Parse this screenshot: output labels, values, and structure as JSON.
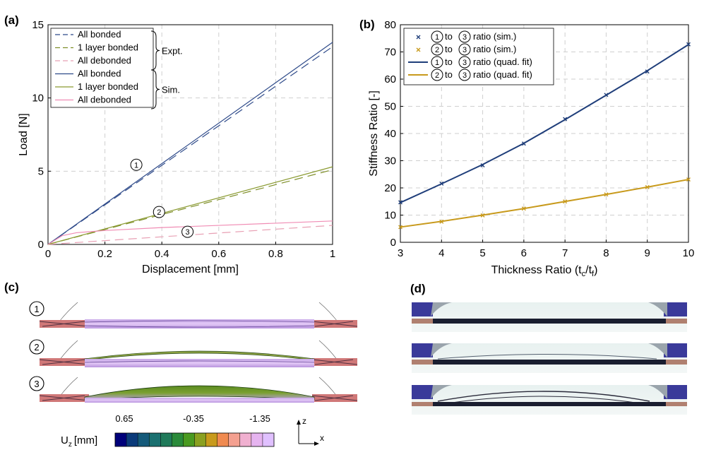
{
  "panels": {
    "a": "(a)",
    "b": "(b)",
    "c": "(c)",
    "d": "(d)"
  },
  "chart_data": [
    {
      "id": "a",
      "type": "line",
      "xlabel": "Displacement [mm]",
      "ylabel": "Load [N]",
      "xlim": [
        0,
        1
      ],
      "ylim": [
        0,
        15
      ],
      "xticks": [
        0,
        0.2,
        0.4,
        0.6,
        0.8,
        1
      ],
      "xtick_labels": [
        "0",
        "0.2",
        "0.4",
        "0.6",
        "0.8",
        "1"
      ],
      "yticks": [
        0,
        5,
        10,
        15
      ],
      "ytick_labels": [
        "0",
        "5",
        "10",
        "15"
      ],
      "grid": true,
      "series": [
        {
          "name": "All bonded",
          "group": "Expt.",
          "style": "dashed",
          "color": "#2f4b8a",
          "x": [
            0,
            1
          ],
          "y": [
            0,
            13.5
          ]
        },
        {
          "name": "1 layer bonded",
          "group": "Expt.",
          "style": "dashed",
          "color": "#7f8f2a",
          "x": [
            0,
            1
          ],
          "y": [
            0,
            5.1
          ]
        },
        {
          "name": "All debonded",
          "group": "Expt.",
          "style": "dashed",
          "color": "#e8a0b4",
          "x": [
            0,
            1
          ],
          "y": [
            0,
            1.3
          ]
        },
        {
          "name": "All bonded",
          "group": "Sim.",
          "style": "solid",
          "color": "#2f4b8a",
          "x": [
            0,
            1
          ],
          "y": [
            0,
            13.8
          ]
        },
        {
          "name": "1 layer bonded",
          "group": "Sim.",
          "style": "solid",
          "color": "#8a9a30",
          "x": [
            0,
            1
          ],
          "y": [
            0,
            5.3
          ]
        },
        {
          "name": "All debonded",
          "group": "Sim.",
          "style": "solid",
          "color": "#f08cb4",
          "x": [
            0,
            0.05,
            0.1,
            0.2,
            0.4,
            0.6,
            0.8,
            1
          ],
          "y": [
            0,
            0.6,
            0.8,
            0.95,
            1.15,
            1.3,
            1.45,
            1.6
          ]
        }
      ],
      "legend_groups": [
        "Expt.",
        "Sim."
      ],
      "legend_position": "top-left",
      "annotations": [
        {
          "label": "1",
          "x": 0.36,
          "y": 5.1
        },
        {
          "label": "2",
          "x": 0.42,
          "y": 2.6
        },
        {
          "label": "3",
          "x": 0.53,
          "y": 1.25
        }
      ]
    },
    {
      "id": "b",
      "type": "line",
      "xlabel_main": "Thickness Ratio (t",
      "xlabel_sub1": "c",
      "xlabel_mid": "/t",
      "xlabel_sub2": "f",
      "xlabel_end": ")",
      "ylabel": "Stiffness Ratio [-]",
      "xlim": [
        3,
        10
      ],
      "ylim": [
        0,
        80
      ],
      "xticks": [
        3,
        4,
        5,
        6,
        7,
        8,
        9,
        10
      ],
      "xtick_labels": [
        "3",
        "4",
        "5",
        "6",
        "7",
        "8",
        "9",
        "10"
      ],
      "yticks": [
        0,
        10,
        20,
        30,
        40,
        50,
        60,
        70,
        80
      ],
      "ytick_labels": [
        "0",
        "10",
        "20",
        "30",
        "40",
        "50",
        "60",
        "70",
        "80"
      ],
      "grid": true,
      "legend_position": "top-left",
      "series": [
        {
          "name": "to",
          "c1": "1",
          "c2": "3",
          "suffix": "ratio (sim.)",
          "kind": "marker",
          "color": "#1f3e7a",
          "x": [
            3,
            4,
            5,
            6,
            7,
            8,
            9,
            10
          ],
          "y": [
            14.7,
            21.6,
            28.3,
            36.3,
            45.3,
            54.2,
            62.8,
            72.8
          ]
        },
        {
          "name": "to",
          "c1": "2",
          "c2": "3",
          "suffix": "ratio (sim.)",
          "kind": "marker",
          "color": "#c89a1c",
          "x": [
            3,
            4,
            5,
            6,
            7,
            8,
            9,
            10
          ],
          "y": [
            5.6,
            7.6,
            9.9,
            12.4,
            15.0,
            17.6,
            20.3,
            23.1
          ]
        },
        {
          "name": "to",
          "c1": "1",
          "c2": "3",
          "suffix": "ratio (quad. fit)",
          "kind": "line",
          "color": "#1f3e7a",
          "x": [
            3,
            4,
            5,
            6,
            7,
            8,
            9,
            10
          ],
          "y": [
            14.6,
            21.5,
            28.6,
            36.4,
            45.1,
            54.1,
            63.1,
            72.7
          ]
        },
        {
          "name": "to",
          "c1": "2",
          "c2": "3",
          "suffix": "ratio (quad. fit)",
          "kind": "line",
          "color": "#c89a1c",
          "x": [
            3,
            4,
            5,
            6,
            7,
            8,
            9,
            10
          ],
          "y": [
            5.6,
            7.7,
            10.0,
            12.4,
            15.0,
            17.6,
            20.3,
            23.1
          ]
        }
      ]
    }
  ],
  "panel_c": {
    "labels": [
      "1",
      "2",
      "3"
    ],
    "colorbar": {
      "label_main": "U",
      "label_sub": "z",
      "label_unit": "[mm]",
      "ticks": [
        "0.65",
        "-0.35",
        "-1.35"
      ],
      "colors": [
        "#00007a",
        "#0a3a7a",
        "#145a7a",
        "#1a7070",
        "#207a5a",
        "#2a8a3a",
        "#4a9a20",
        "#8aa020",
        "#c89a1c",
        "#f08a50",
        "#f4a090",
        "#f0b0d0",
        "#e6b4f0",
        "#e0c0ff"
      ]
    },
    "axes": {
      "z": "z",
      "x": "x"
    }
  }
}
